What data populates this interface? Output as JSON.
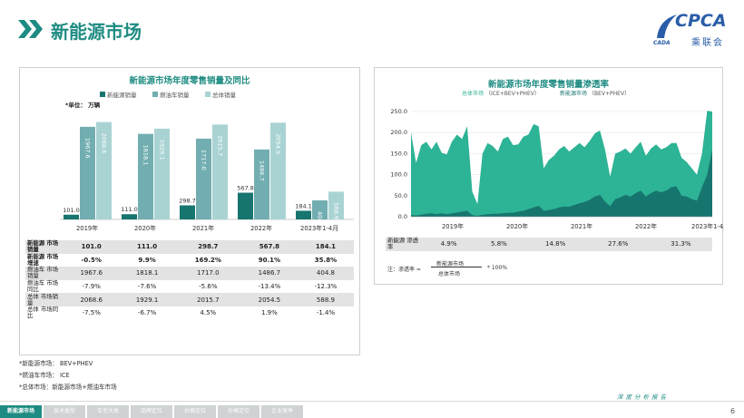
{
  "page": {
    "title": "新能源市场",
    "logo": {
      "text": "CPCA",
      "sub": "乘联会",
      "mini": "CADA"
    },
    "footer_caption": "深度分析报告",
    "page_number": "6",
    "nav_tabs": [
      {
        "label": "新能源市场",
        "active": true
      },
      {
        "label": "技术类型",
        "active": false
      },
      {
        "label": "车型大类",
        "active": false
      },
      {
        "label": "品牌定位",
        "active": false
      },
      {
        "label": "价格定位",
        "active": false
      },
      {
        "label": "价格定位",
        "active": false
      },
      {
        "label": "企业竞争",
        "active": false
      }
    ],
    "notes": [
      "*新能源市场：  BEV+PHEV",
      "*燃油车市场：  ICE",
      "*总体市场：新能源市场+燃油车市场"
    ]
  },
  "colors": {
    "nev": "#17756f",
    "fuel": "#72aeb1",
    "total": "#a9d3d3",
    "area_total": "#2db395",
    "area_nev": "#17756f",
    "accent": "#1e8c82"
  },
  "chart_data": [
    {
      "type": "bar",
      "title": "新能源市场年度零售销量及同比",
      "unit_label": "*单位：  万辆",
      "categories": [
        "2019年",
        "2020年",
        "2021年",
        "2022年",
        "2023年1-4月"
      ],
      "series": [
        {
          "name": "新能源销量",
          "values": [
            101.0,
            111.0,
            298.7,
            567.8,
            184.1
          ]
        },
        {
          "name": "燃油车销量",
          "values": [
            1967.6,
            1818.1,
            1717.0,
            1486.7,
            404.8
          ]
        },
        {
          "name": "总体销量",
          "values": [
            2068.6,
            1929.1,
            2015.7,
            2054.5,
            588.9
          ]
        }
      ],
      "ylim": [
        0,
        2100
      ],
      "table": [
        {
          "label": "新能源 市场销量",
          "values": [
            "101.0",
            "111.0",
            "298.7",
            "567.8",
            "184.1"
          ],
          "bold": true,
          "shade": true
        },
        {
          "label": "新能源 市场增速",
          "values": [
            "-0.5%",
            "9.9%",
            "169.2%",
            "90.1%",
            "35.8%"
          ],
          "bold": true,
          "shade": false
        },
        {
          "label": "燃油车 市场销量",
          "values": [
            "1967.6",
            "1818.1",
            "1717.0",
            "1486.7",
            "404.8"
          ],
          "bold": false,
          "shade": true
        },
        {
          "label": "燃油车 市场同比",
          "values": [
            "-7.9%",
            "-7.6%",
            "-5.6%",
            "-13.4%",
            "-12.3%"
          ],
          "bold": false,
          "shade": false
        },
        {
          "label": "总体 市场销量",
          "values": [
            "2068.6",
            "1929.1",
            "2015.7",
            "2054.5",
            "588.9"
          ],
          "bold": false,
          "shade": true
        },
        {
          "label": "总体 市场同比",
          "values": [
            "-7.5%",
            "-6.7%",
            "4.5%",
            "1.9%",
            "-1.4%"
          ],
          "bold": false,
          "shade": false
        }
      ]
    },
    {
      "type": "area",
      "title": "新能源市场年度零售销量渗透率",
      "legend": [
        {
          "name": "总体市场",
          "desc": "（ICE+BEV+PHEV）"
        },
        {
          "name": "新能源市场",
          "desc": "（BEV+PHEV）"
        }
      ],
      "ylim": [
        0,
        250
      ],
      "yticks": [
        "250.0",
        "200.0",
        "150.0",
        "100.0",
        "50.0",
        "0.0"
      ],
      "xlabels": [
        "2019年",
        "2020年",
        "2021年",
        "2022年",
        "2023年1-4月"
      ],
      "series": [
        {
          "name": "总体市场",
          "values": [
            200,
            128,
            170,
            178,
            160,
            178,
            152,
            148,
            178,
            195,
            185,
            215,
            60,
            30,
            150,
            175,
            168,
            155,
            185,
            190,
            170,
            172,
            190,
            195,
            220,
            215,
            115,
            135,
            145,
            160,
            168,
            155,
            165,
            175,
            165,
            180,
            198,
            205,
            160,
            95,
            150,
            155,
            162,
            150,
            165,
            178,
            145,
            162,
            172,
            160,
            165,
            175,
            175,
            140,
            130,
            115,
            100,
            150,
            252,
            250
          ]
        },
        {
          "name": "新能源市场",
          "values": [
            4,
            3,
            5,
            7,
            8,
            6,
            8,
            6,
            8,
            10,
            12,
            14,
            4,
            2,
            5,
            6,
            7,
            7,
            8,
            9,
            9,
            12,
            14,
            18,
            22,
            26,
            14,
            16,
            18,
            22,
            24,
            24,
            28,
            32,
            35,
            40,
            48,
            52,
            36,
            25,
            42,
            46,
            52,
            48,
            56,
            62,
            48,
            56,
            62,
            58,
            62,
            70,
            72,
            50,
            48,
            42,
            38,
            70,
            100,
            160
          ]
        }
      ],
      "table": [
        {
          "label": "新能源 渗透率",
          "values": [
            "4.9%",
            "5.8%",
            "14.8%",
            "27.6%",
            "31.3%"
          ]
        }
      ],
      "formula": {
        "prefix": "注：渗透率 =",
        "numerator": "新能源市场",
        "denominator": "总体市场",
        "suffix": "*  100%"
      }
    }
  ]
}
